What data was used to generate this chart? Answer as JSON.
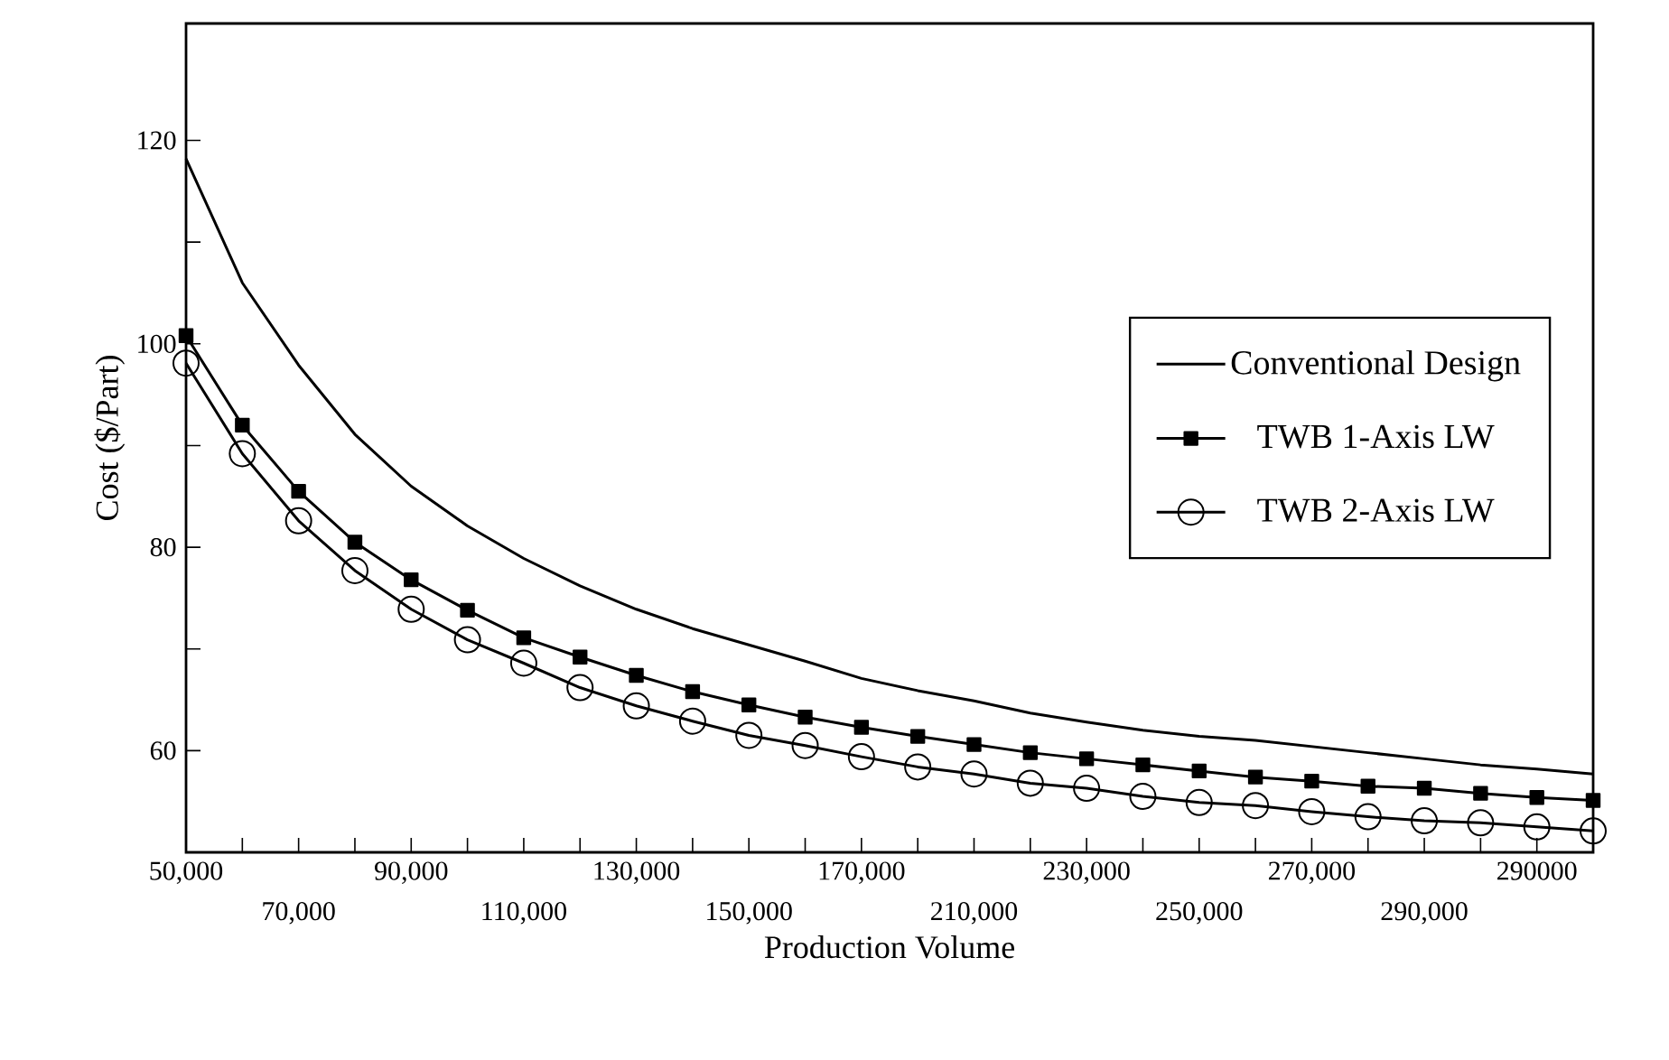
{
  "chart_data": {
    "type": "line",
    "xlabel": "Production Volume",
    "ylabel": "Cost ($/Part)",
    "categories": [
      "50,000",
      null,
      "70,000",
      null,
      "90,000",
      null,
      "110,000",
      null,
      "130,000",
      null,
      "150,000",
      null,
      "170,000",
      null,
      "210,000",
      null,
      "230,000",
      null,
      "250,000",
      null,
      "270,000",
      null,
      "290,000",
      null,
      "290000",
      null
    ],
    "ylim": [
      50,
      131.5
    ],
    "yticks": [
      60,
      {
        "value": 70,
        "label": null
      },
      80,
      {
        "value": 90,
        "label": null
      },
      100,
      {
        "value": 110,
        "label": null
      },
      120
    ],
    "legend": "right",
    "grid": false,
    "line_style": "solid",
    "series": [
      {
        "name": "Conventional Design",
        "color": "#000000",
        "marker": "none",
        "values": [
          118.2,
          106.0,
          97.9,
          91.1,
          86.0,
          82.1,
          78.9,
          76.2,
          73.9,
          72.0,
          70.4,
          68.8,
          67.1,
          65.9,
          64.9,
          63.7,
          62.8,
          62.0,
          61.4,
          61.0,
          60.4,
          59.8,
          59.2,
          58.6,
          58.2,
          57.7
        ]
      },
      {
        "name": "TWB 1-Axis LW",
        "color": "#000000",
        "marker": "square",
        "values": [
          100.8,
          92.0,
          85.5,
          80.5,
          76.8,
          73.8,
          71.1,
          69.2,
          67.4,
          65.8,
          64.5,
          63.3,
          62.3,
          61.4,
          60.6,
          59.8,
          59.2,
          58.6,
          58.0,
          57.4,
          57.0,
          56.5,
          56.3,
          55.8,
          55.4,
          55.1
        ]
      },
      {
        "name": "TWB 2-Axis LW",
        "color": "#000000",
        "marker": "circle",
        "values": [
          98.1,
          89.2,
          82.6,
          77.7,
          73.9,
          70.9,
          68.6,
          66.2,
          64.4,
          62.9,
          61.5,
          60.5,
          59.4,
          58.4,
          57.7,
          56.8,
          56.3,
          55.5,
          54.9,
          54.6,
          54.0,
          53.5,
          53.1,
          52.9,
          52.5,
          52.1
        ]
      }
    ]
  }
}
